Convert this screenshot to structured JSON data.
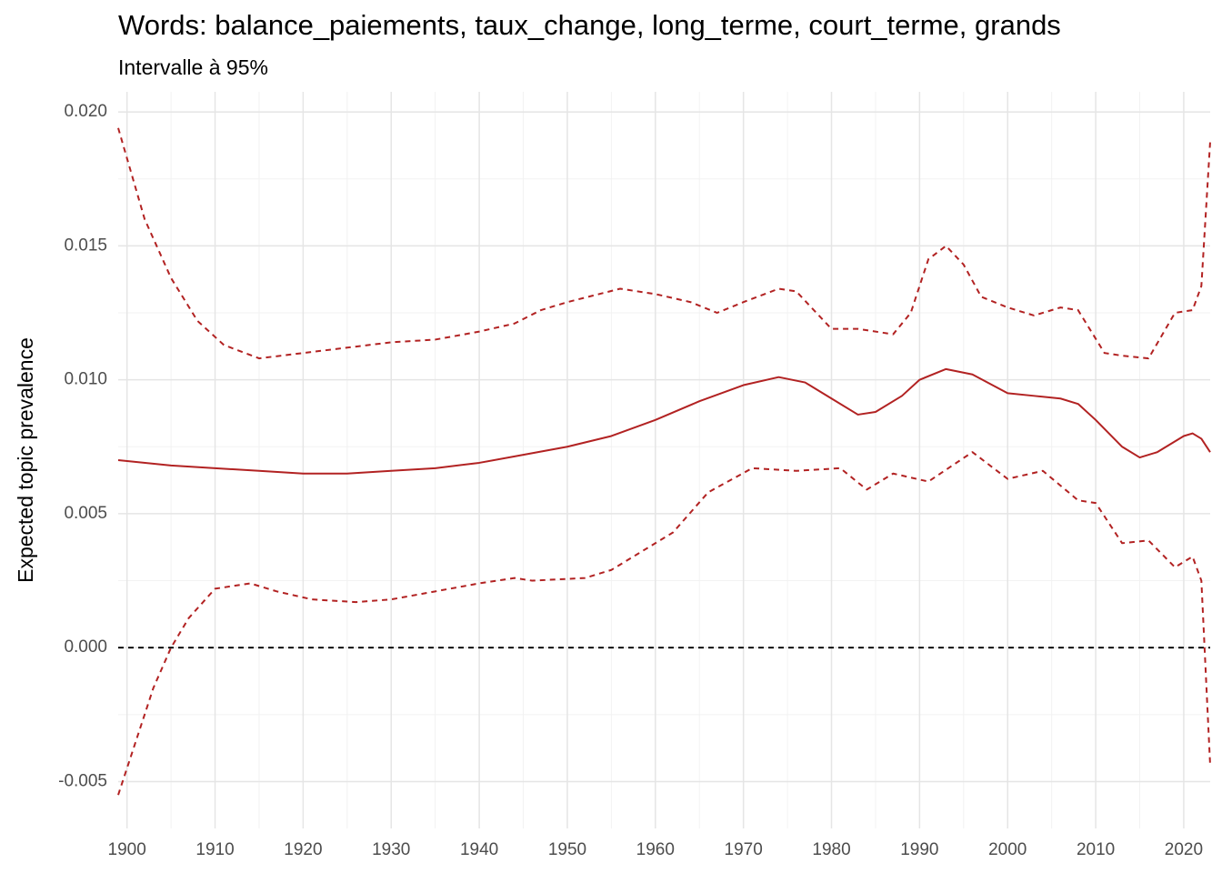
{
  "chart_data": {
    "type": "line",
    "title": "Words: balance_paiements, taux_change, long_terme, court_terme, grands",
    "subtitle": "Intervalle à 95%",
    "y_label": "Expected topic prevalence",
    "xlim": [
      1899,
      2023
    ],
    "ylim": [
      -0.00675,
      0.02075
    ],
    "xticks": [
      1900,
      1910,
      1920,
      1930,
      1940,
      1950,
      1960,
      1970,
      1980,
      1990,
      2000,
      2010,
      2020
    ],
    "x_minor_ticks": [
      1905,
      1915,
      1925,
      1935,
      1945,
      1955,
      1965,
      1975,
      1985,
      1995,
      2005,
      2015
    ],
    "yticks": [
      {
        "value": -0.005,
        "label": "-0.005"
      },
      {
        "value": 0,
        "label": "0.000"
      },
      {
        "value": 0.005,
        "label": "0.005"
      },
      {
        "value": 0.01,
        "label": "0.010"
      },
      {
        "value": 0.015,
        "label": "0.015"
      },
      {
        "value": 0.02,
        "label": "0.020"
      }
    ],
    "y_minor_ticks": [
      -0.0025,
      0.0025,
      0.0075,
      0.0125,
      0.0175
    ],
    "grid": true,
    "hline": {
      "value": 0,
      "color": "#000000",
      "linestyle": "dashed"
    },
    "series": [
      {
        "color": "#b22222",
        "linestyle": "solid",
        "x": [
          1899,
          1905,
          1910,
          1915,
          1920,
          1925,
          1930,
          1935,
          1940,
          1945,
          1950,
          1955,
          1960,
          1965,
          1970,
          1974,
          1977,
          1980,
          1983,
          1985,
          1988,
          1990,
          1993,
          1996,
          2000,
          2003,
          2006,
          2008,
          2010,
          2013,
          2015,
          2017,
          2020,
          2021,
          2022,
          2023
        ],
        "values": [
          0.007,
          0.0068,
          0.0067,
          0.0066,
          0.0065,
          0.0065,
          0.0066,
          0.0067,
          0.0069,
          0.0072,
          0.0075,
          0.0079,
          0.0085,
          0.0092,
          0.0098,
          0.0101,
          0.0099,
          0.0093,
          0.0087,
          0.0088,
          0.0094,
          0.01,
          0.0104,
          0.0102,
          0.0095,
          0.0094,
          0.0093,
          0.0091,
          0.0085,
          0.0075,
          0.0071,
          0.0073,
          0.0079,
          0.008,
          0.0078,
          0.0073
        ]
      },
      {
        "color": "#b22222",
        "linestyle": "dashed",
        "x": [
          1899,
          1902,
          1905,
          1908,
          1911,
          1915,
          1920,
          1925,
          1930,
          1935,
          1940,
          1944,
          1947,
          1950,
          1956,
          1960,
          1964,
          1967,
          1970,
          1974,
          1976,
          1980,
          1983,
          1987,
          1989,
          1991,
          1993,
          1995,
          1997,
          2000,
          2003,
          2006,
          2008,
          2011,
          2013,
          2016,
          2019,
          2021,
          2022,
          2023
        ],
        "values": [
          0.0194,
          0.016,
          0.0138,
          0.0122,
          0.0113,
          0.0108,
          0.011,
          0.0112,
          0.0114,
          0.0115,
          0.0118,
          0.0121,
          0.0126,
          0.0129,
          0.0134,
          0.0132,
          0.0129,
          0.0125,
          0.0129,
          0.0134,
          0.0133,
          0.0119,
          0.0119,
          0.0117,
          0.0125,
          0.0145,
          0.015,
          0.0143,
          0.0131,
          0.0127,
          0.0124,
          0.0127,
          0.0126,
          0.011,
          0.0109,
          0.0108,
          0.0125,
          0.0126,
          0.0135,
          0.0189
        ]
      },
      {
        "color": "#b22222",
        "linestyle": "dashed",
        "x": [
          1899,
          1901,
          1903,
          1905,
          1907,
          1910,
          1914,
          1917,
          1921,
          1926,
          1930,
          1935,
          1940,
          1944,
          1946,
          1952,
          1955,
          1958,
          1962,
          1966,
          1971,
          1976,
          1981,
          1984,
          1987,
          1991,
          1996,
          2000,
          2004,
          2008,
          2010,
          2013,
          2016,
          2019,
          2021,
          2022,
          2023
        ],
        "values": [
          -0.0055,
          -0.0035,
          -0.0015,
          0,
          0.0011,
          0.0022,
          0.0024,
          0.0021,
          0.0018,
          0.0017,
          0.0018,
          0.0021,
          0.0024,
          0.0026,
          0.0025,
          0.0026,
          0.0029,
          0.0035,
          0.0043,
          0.0058,
          0.0067,
          0.0066,
          0.0067,
          0.0059,
          0.0065,
          0.0062,
          0.0073,
          0.0063,
          0.0066,
          0.0055,
          0.0054,
          0.0039,
          0.004,
          0.003,
          0.0034,
          0.0025,
          -0.0044
        ]
      }
    ]
  }
}
